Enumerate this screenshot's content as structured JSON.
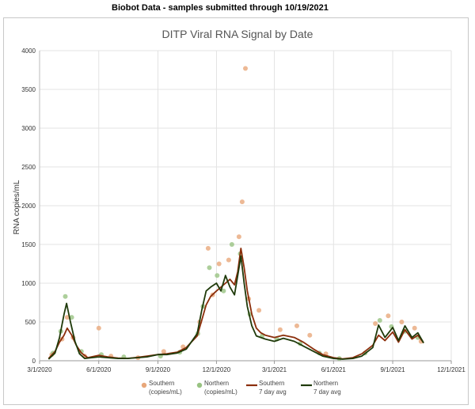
{
  "header": {
    "text": "Biobot Data - samples submitted through 10/19/2021"
  },
  "chart_data": {
    "type": "scatter",
    "title": "DITP Viral RNA Signal by Date",
    "ylabel": "RNA copies/mL",
    "xlabel": "",
    "ylim": [
      0,
      4000
    ],
    "y_ticks": [
      "0",
      "500",
      "1000",
      "1500",
      "2000",
      "2500",
      "3000",
      "3500",
      "4000"
    ],
    "y_tick_values": [
      0,
      500,
      1000,
      1500,
      2000,
      2500,
      3000,
      3500,
      4000
    ],
    "x_ticks": [
      "3/1/2020",
      "6/1/2020",
      "9/1/2020",
      "12/1/2020",
      "3/1/2021",
      "6/1/2021",
      "9/1/2021",
      "12/1/2021"
    ],
    "x_tick_dates": [
      "2020-03-01",
      "2020-06-01",
      "2020-09-01",
      "2020-12-01",
      "2021-03-01",
      "2021-06-01",
      "2021-09-01",
      "2021-12-01"
    ],
    "grid": true,
    "legend_position": "bottom",
    "colors": {
      "southern": "#e8a77a",
      "northern": "#98c382",
      "southern_avg": "#8b2e0b",
      "northern_avg": "#1f3a0a"
    },
    "legend": [
      {
        "line1": "Southern",
        "line2": "(copies/mL)",
        "kind": "dot",
        "color": "#e8a77a"
      },
      {
        "line1": "Northern",
        "line2": "(copies/mL)",
        "kind": "dot",
        "color": "#98c382"
      },
      {
        "line1": "Southern",
        "line2": "7 day avg",
        "kind": "line",
        "color": "#8b2e0b"
      },
      {
        "line1": "Northern",
        "line2": "7 day avg",
        "kind": "line",
        "color": "#1f3a0a"
      }
    ],
    "series": [
      {
        "name": "Southern 7 day avg",
        "points": [
          [
            "2020-03-15",
            30
          ],
          [
            "2020-03-25",
            120
          ],
          [
            "2020-04-01",
            240
          ],
          [
            "2020-04-08",
            330
          ],
          [
            "2020-04-13",
            420
          ],
          [
            "2020-04-20",
            330
          ],
          [
            "2020-04-27",
            200
          ],
          [
            "2020-05-05",
            100
          ],
          [
            "2020-05-15",
            40
          ],
          [
            "2020-06-01",
            70
          ],
          [
            "2020-06-15",
            50
          ],
          [
            "2020-07-01",
            35
          ],
          [
            "2020-07-15",
            30
          ],
          [
            "2020-08-01",
            45
          ],
          [
            "2020-08-15",
            60
          ],
          [
            "2020-09-01",
            80
          ],
          [
            "2020-09-15",
            90
          ],
          [
            "2020-10-01",
            110
          ],
          [
            "2020-10-15",
            170
          ],
          [
            "2020-11-01",
            320
          ],
          [
            "2020-11-08",
            520
          ],
          [
            "2020-11-15",
            720
          ],
          [
            "2020-11-22",
            830
          ],
          [
            "2020-12-01",
            900
          ],
          [
            "2020-12-08",
            950
          ],
          [
            "2020-12-15",
            1000
          ],
          [
            "2020-12-22",
            1050
          ],
          [
            "2020-12-29",
            980
          ],
          [
            "2021-01-03",
            1150
          ],
          [
            "2021-01-08",
            1450
          ],
          [
            "2021-01-13",
            1200
          ],
          [
            "2021-01-18",
            900
          ],
          [
            "2021-01-25",
            600
          ],
          [
            "2021-02-01",
            420
          ],
          [
            "2021-02-08",
            360
          ],
          [
            "2021-02-15",
            330
          ],
          [
            "2021-03-01",
            300
          ],
          [
            "2021-03-15",
            330
          ],
          [
            "2021-04-01",
            300
          ],
          [
            "2021-04-15",
            240
          ],
          [
            "2021-05-01",
            150
          ],
          [
            "2021-05-15",
            80
          ],
          [
            "2021-06-01",
            40
          ],
          [
            "2021-06-15",
            25
          ],
          [
            "2021-07-01",
            40
          ],
          [
            "2021-07-15",
            90
          ],
          [
            "2021-08-01",
            200
          ],
          [
            "2021-08-10",
            330
          ],
          [
            "2021-08-20",
            260
          ],
          [
            "2021-09-01",
            370
          ],
          [
            "2021-09-10",
            240
          ],
          [
            "2021-09-20",
            400
          ],
          [
            "2021-10-01",
            280
          ],
          [
            "2021-10-10",
            330
          ],
          [
            "2021-10-19",
            230
          ]
        ]
      },
      {
        "name": "Northern 7 day avg",
        "points": [
          [
            "2020-03-15",
            20
          ],
          [
            "2020-03-25",
            100
          ],
          [
            "2020-04-01",
            300
          ],
          [
            "2020-04-08",
            600
          ],
          [
            "2020-04-12",
            740
          ],
          [
            "2020-04-18",
            500
          ],
          [
            "2020-04-25",
            250
          ],
          [
            "2020-05-02",
            90
          ],
          [
            "2020-05-10",
            30
          ],
          [
            "2020-06-01",
            50
          ],
          [
            "2020-06-15",
            40
          ],
          [
            "2020-07-01",
            30
          ],
          [
            "2020-07-15",
            30
          ],
          [
            "2020-08-01",
            40
          ],
          [
            "2020-08-15",
            50
          ],
          [
            "2020-09-01",
            80
          ],
          [
            "2020-09-15",
            80
          ],
          [
            "2020-10-01",
            100
          ],
          [
            "2020-10-15",
            150
          ],
          [
            "2020-11-01",
            350
          ],
          [
            "2020-11-08",
            650
          ],
          [
            "2020-11-15",
            900
          ],
          [
            "2020-11-22",
            950
          ],
          [
            "2020-12-01",
            1000
          ],
          [
            "2020-12-08",
            900
          ],
          [
            "2020-12-15",
            1100
          ],
          [
            "2020-12-22",
            950
          ],
          [
            "2020-12-29",
            850
          ],
          [
            "2021-01-03",
            1100
          ],
          [
            "2021-01-08",
            1350
          ],
          [
            "2021-01-13",
            1000
          ],
          [
            "2021-01-18",
            700
          ],
          [
            "2021-01-25",
            450
          ],
          [
            "2021-02-01",
            320
          ],
          [
            "2021-02-08",
            300
          ],
          [
            "2021-02-15",
            280
          ],
          [
            "2021-03-01",
            250
          ],
          [
            "2021-03-15",
            290
          ],
          [
            "2021-04-01",
            250
          ],
          [
            "2021-04-15",
            190
          ],
          [
            "2021-05-01",
            120
          ],
          [
            "2021-05-15",
            60
          ],
          [
            "2021-06-01",
            30
          ],
          [
            "2021-06-15",
            20
          ],
          [
            "2021-07-01",
            30
          ],
          [
            "2021-07-15",
            60
          ],
          [
            "2021-08-01",
            170
          ],
          [
            "2021-08-10",
            460
          ],
          [
            "2021-08-20",
            300
          ],
          [
            "2021-09-01",
            430
          ],
          [
            "2021-09-10",
            260
          ],
          [
            "2021-09-20",
            450
          ],
          [
            "2021-10-01",
            300
          ],
          [
            "2021-10-10",
            360
          ],
          [
            "2021-10-19",
            230
          ]
        ]
      },
      {
        "name": "Southern (copies/mL)",
        "points": [
          [
            "2020-03-20",
            80
          ],
          [
            "2020-04-05",
            280
          ],
          [
            "2020-04-13",
            560
          ],
          [
            "2020-04-22",
            300
          ],
          [
            "2020-05-10",
            60
          ],
          [
            "2020-06-01",
            420
          ],
          [
            "2020-06-20",
            60
          ],
          [
            "2020-08-01",
            40
          ],
          [
            "2020-09-10",
            120
          ],
          [
            "2020-10-10",
            180
          ],
          [
            "2020-11-05",
            500
          ],
          [
            "2020-11-18",
            1450
          ],
          [
            "2020-11-25",
            850
          ],
          [
            "2020-12-05",
            1250
          ],
          [
            "2020-12-20",
            1300
          ],
          [
            "2021-01-05",
            1600
          ],
          [
            "2021-01-10",
            2050
          ],
          [
            "2021-01-15",
            3770
          ],
          [
            "2021-01-20",
            800
          ],
          [
            "2021-02-05",
            650
          ],
          [
            "2021-03-10",
            400
          ],
          [
            "2021-04-05",
            450
          ],
          [
            "2021-04-25",
            330
          ],
          [
            "2021-05-20",
            90
          ],
          [
            "2021-08-05",
            480
          ],
          [
            "2021-08-25",
            580
          ],
          [
            "2021-09-15",
            500
          ],
          [
            "2021-10-05",
            420
          ],
          [
            "2021-10-15",
            250
          ]
        ]
      },
      {
        "name": "Northern (copies/mL)",
        "points": [
          [
            "2020-03-22",
            100
          ],
          [
            "2020-04-03",
            380
          ],
          [
            "2020-04-10",
            830
          ],
          [
            "2020-04-20",
            560
          ],
          [
            "2020-05-05",
            120
          ],
          [
            "2020-06-05",
            80
          ],
          [
            "2020-07-10",
            50
          ],
          [
            "2020-09-05",
            60
          ],
          [
            "2020-10-05",
            110
          ],
          [
            "2020-11-02",
            350
          ],
          [
            "2020-11-10",
            700
          ],
          [
            "2020-11-20",
            1200
          ],
          [
            "2020-12-02",
            1100
          ],
          [
            "2020-12-12",
            900
          ],
          [
            "2020-12-25",
            1500
          ],
          [
            "2021-01-07",
            1380
          ],
          [
            "2021-01-22",
            600
          ],
          [
            "2021-02-10",
            320
          ],
          [
            "2021-03-05",
            280
          ],
          [
            "2021-04-10",
            220
          ],
          [
            "2021-05-10",
            100
          ],
          [
            "2021-06-10",
            30
          ],
          [
            "2021-07-20",
            100
          ],
          [
            "2021-08-12",
            520
          ],
          [
            "2021-08-30",
            440
          ],
          [
            "2021-09-20",
            380
          ],
          [
            "2021-10-10",
            300
          ]
        ]
      }
    ]
  }
}
